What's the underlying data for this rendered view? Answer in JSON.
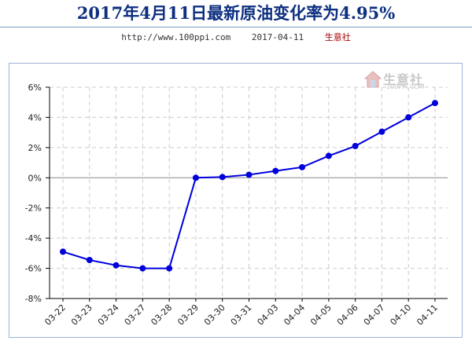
{
  "header": {
    "title": "2017年4月11日最新原油变化率为4.95%",
    "url": "http://www.100ppi.com",
    "date": "2017-04-11",
    "brand": "生意社"
  },
  "logo": {
    "text": "生意社",
    "sub": "100PPI.COM"
  },
  "colors": {
    "line": "#0000dd",
    "marker": "#0000dd",
    "grid": "#cccccc",
    "zero_line": "#888888",
    "axis": "#000000"
  },
  "chart_data": {
    "type": "line",
    "title": "2017年4月11日最新原油变化率为4.95%",
    "xlabel": "",
    "ylabel": "",
    "categories": [
      "03-22",
      "03-23",
      "03-24",
      "03-27",
      "03-28",
      "03-29",
      "03-30",
      "03-31",
      "04-03",
      "04-04",
      "04-05",
      "04-06",
      "04-07",
      "04-10",
      "04-11"
    ],
    "series": [
      {
        "values": [
          -4.9,
          -5.45,
          -5.8,
          -6.0,
          -6.0,
          0.0,
          0.05,
          0.2,
          0.45,
          0.7,
          1.45,
          2.1,
          3.05,
          4.0,
          4.95
        ]
      }
    ],
    "ylim": [
      -8,
      6
    ],
    "yticks": [
      6,
      4,
      2,
      0,
      -2,
      -4,
      -6,
      -8
    ],
    "ytick_labels": [
      "6%",
      "4%",
      "2%",
      "0%",
      "-2%",
      "-4%",
      "-6%",
      "-8%"
    ],
    "grid": true,
    "legend": "none"
  }
}
